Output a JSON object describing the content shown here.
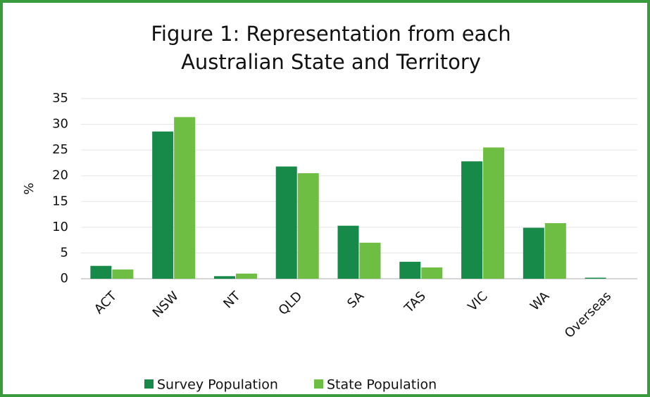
{
  "chart_data": {
    "type": "bar",
    "title": [
      "Figure 1: Representation from each",
      "Australian State and Territory"
    ],
    "y_label": "%",
    "categories": [
      "ACT",
      "NSW",
      "NT",
      "QLD",
      "SA",
      "TAS",
      "VIC",
      "WA",
      "Overseas"
    ],
    "series": [
      {
        "name": "Survey Population",
        "color": "#178a4a",
        "values": [
          2.5,
          28.6,
          0.5,
          21.8,
          10.3,
          3.3,
          22.8,
          9.9,
          0.2
        ]
      },
      {
        "name": "State Population",
        "color": "#6fbe44",
        "values": [
          1.8,
          31.4,
          1.0,
          20.5,
          7.0,
          2.2,
          25.5,
          10.8,
          0
        ]
      }
    ],
    "ylim": [
      0,
      35
    ],
    "yticks": [
      0,
      5,
      10,
      15,
      20,
      25,
      30,
      35
    ],
    "grid": true,
    "legend": "bottom"
  }
}
